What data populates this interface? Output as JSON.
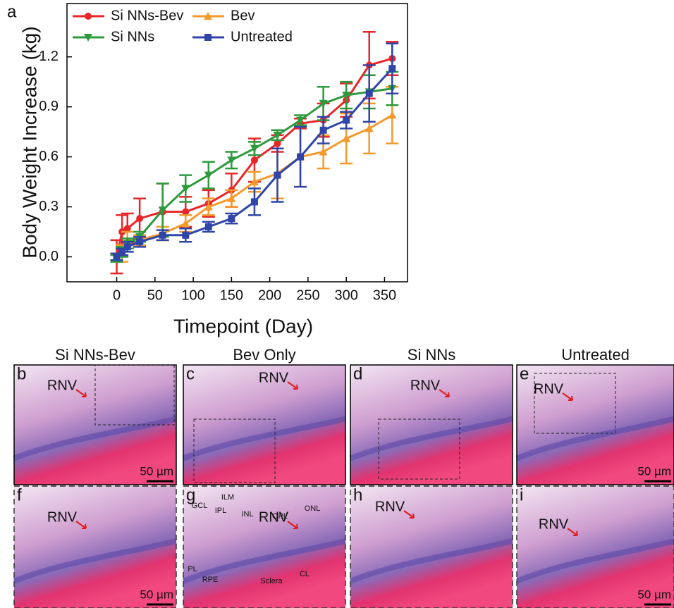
{
  "chart_data": {
    "type": "line",
    "panel_letter": "a",
    "y_label": "Body Weight Increase (kg)",
    "x_label": "Timepoint (Day)",
    "x": [
      0,
      7,
      14,
      30,
      60,
      90,
      120,
      150,
      180,
      210,
      240,
      270,
      300,
      330,
      360
    ],
    "xlim": [
      -65,
      380
    ],
    "xticks": [
      0,
      50,
      100,
      150,
      200,
      250,
      300,
      350
    ],
    "ylim": [
      -0.15,
      1.52
    ],
    "yticks": [
      {
        "value": 0,
        "label": "0.0"
      },
      {
        "value": 0.3,
        "label": "0.3"
      },
      {
        "value": 0.6,
        "label": "0.6"
      },
      {
        "value": 0.9,
        "label": "0.9"
      },
      {
        "value": 1.2,
        "label": "1.2"
      }
    ],
    "legend": "top-left",
    "grid": false,
    "series": [
      {
        "name": "Si NNs-Bev",
        "color": "#e8262a",
        "marker": "circle",
        "values": [
          0.0,
          0.15,
          0.17,
          0.23,
          0.27,
          0.27,
          0.32,
          0.4,
          0.58,
          0.68,
          0.8,
          0.82,
          0.94,
          1.15,
          1.19
        ],
        "errors": [
          0.1,
          0.1,
          0.09,
          0.12,
          0.17,
          0.09,
          0.08,
          0.1,
          0.13,
          0.05,
          0.03,
          0.1,
          0.1,
          0.2,
          0.1
        ]
      },
      {
        "name": "Bev",
        "color": "#f39a2b",
        "marker": "triangle-up",
        "values": [
          0.0,
          0.02,
          0.1,
          0.1,
          0.14,
          0.2,
          0.3,
          0.35,
          0.45,
          0.5,
          0.6,
          0.63,
          0.71,
          0.77,
          0.85
        ],
        "errors": [
          0.02,
          0.05,
          0.05,
          0.03,
          0.04,
          0.05,
          0.05,
          0.05,
          0.06,
          0.15,
          0.18,
          0.1,
          0.15,
          0.15,
          0.17
        ]
      },
      {
        "name": "Si NNs",
        "color": "#2e9a3e",
        "marker": "triangle-down",
        "values": [
          -0.01,
          0.03,
          0.08,
          0.12,
          0.28,
          0.41,
          0.49,
          0.58,
          0.65,
          0.73,
          0.82,
          0.92,
          0.97,
          0.99,
          1.01
        ],
        "errors": [
          0.02,
          0.03,
          0.03,
          0.03,
          0.16,
          0.08,
          0.08,
          0.05,
          0.04,
          0.03,
          0.03,
          0.1,
          0.08,
          0.1,
          0.1
        ]
      },
      {
        "name": "Untreated",
        "color": "#2f45a8",
        "marker": "square",
        "values": [
          0.0,
          0.03,
          0.06,
          0.09,
          0.13,
          0.13,
          0.18,
          0.23,
          0.33,
          0.49,
          0.6,
          0.76,
          0.82,
          0.98,
          1.13
        ],
        "errors": [
          0.02,
          0.02,
          0.03,
          0.03,
          0.03,
          0.04,
          0.03,
          0.03,
          0.08,
          0.16,
          0.18,
          0.08,
          0.05,
          0.17,
          0.15
        ]
      }
    ]
  },
  "panels": {
    "columns": [
      "Si NNs-Bev",
      "Bev Only",
      "Si NNs",
      "Untreated"
    ],
    "cells": [
      {
        "letter": "b",
        "labels": [
          "RNV"
        ],
        "scale_bar": "50 µm"
      },
      {
        "letter": "c",
        "labels": [
          "RNV"
        ]
      },
      {
        "letter": "d",
        "labels": [
          "RNV"
        ]
      },
      {
        "letter": "e",
        "labels": [
          "RNV"
        ],
        "scale_bar": "50 µm"
      },
      {
        "letter": "f",
        "labels": [
          "RNV"
        ],
        "scale_bar": "50 µm"
      },
      {
        "letter": "g",
        "labels": [
          "RNV",
          "ILM",
          "GCL",
          "IPL",
          "INL",
          "OPL",
          "ONL",
          "PL",
          "RPE",
          "Sclera",
          "CL"
        ]
      },
      {
        "letter": "h",
        "labels": [
          "RNV"
        ]
      },
      {
        "letter": "i",
        "labels": [
          "RNV"
        ],
        "scale_bar": "50 µm"
      }
    ]
  }
}
